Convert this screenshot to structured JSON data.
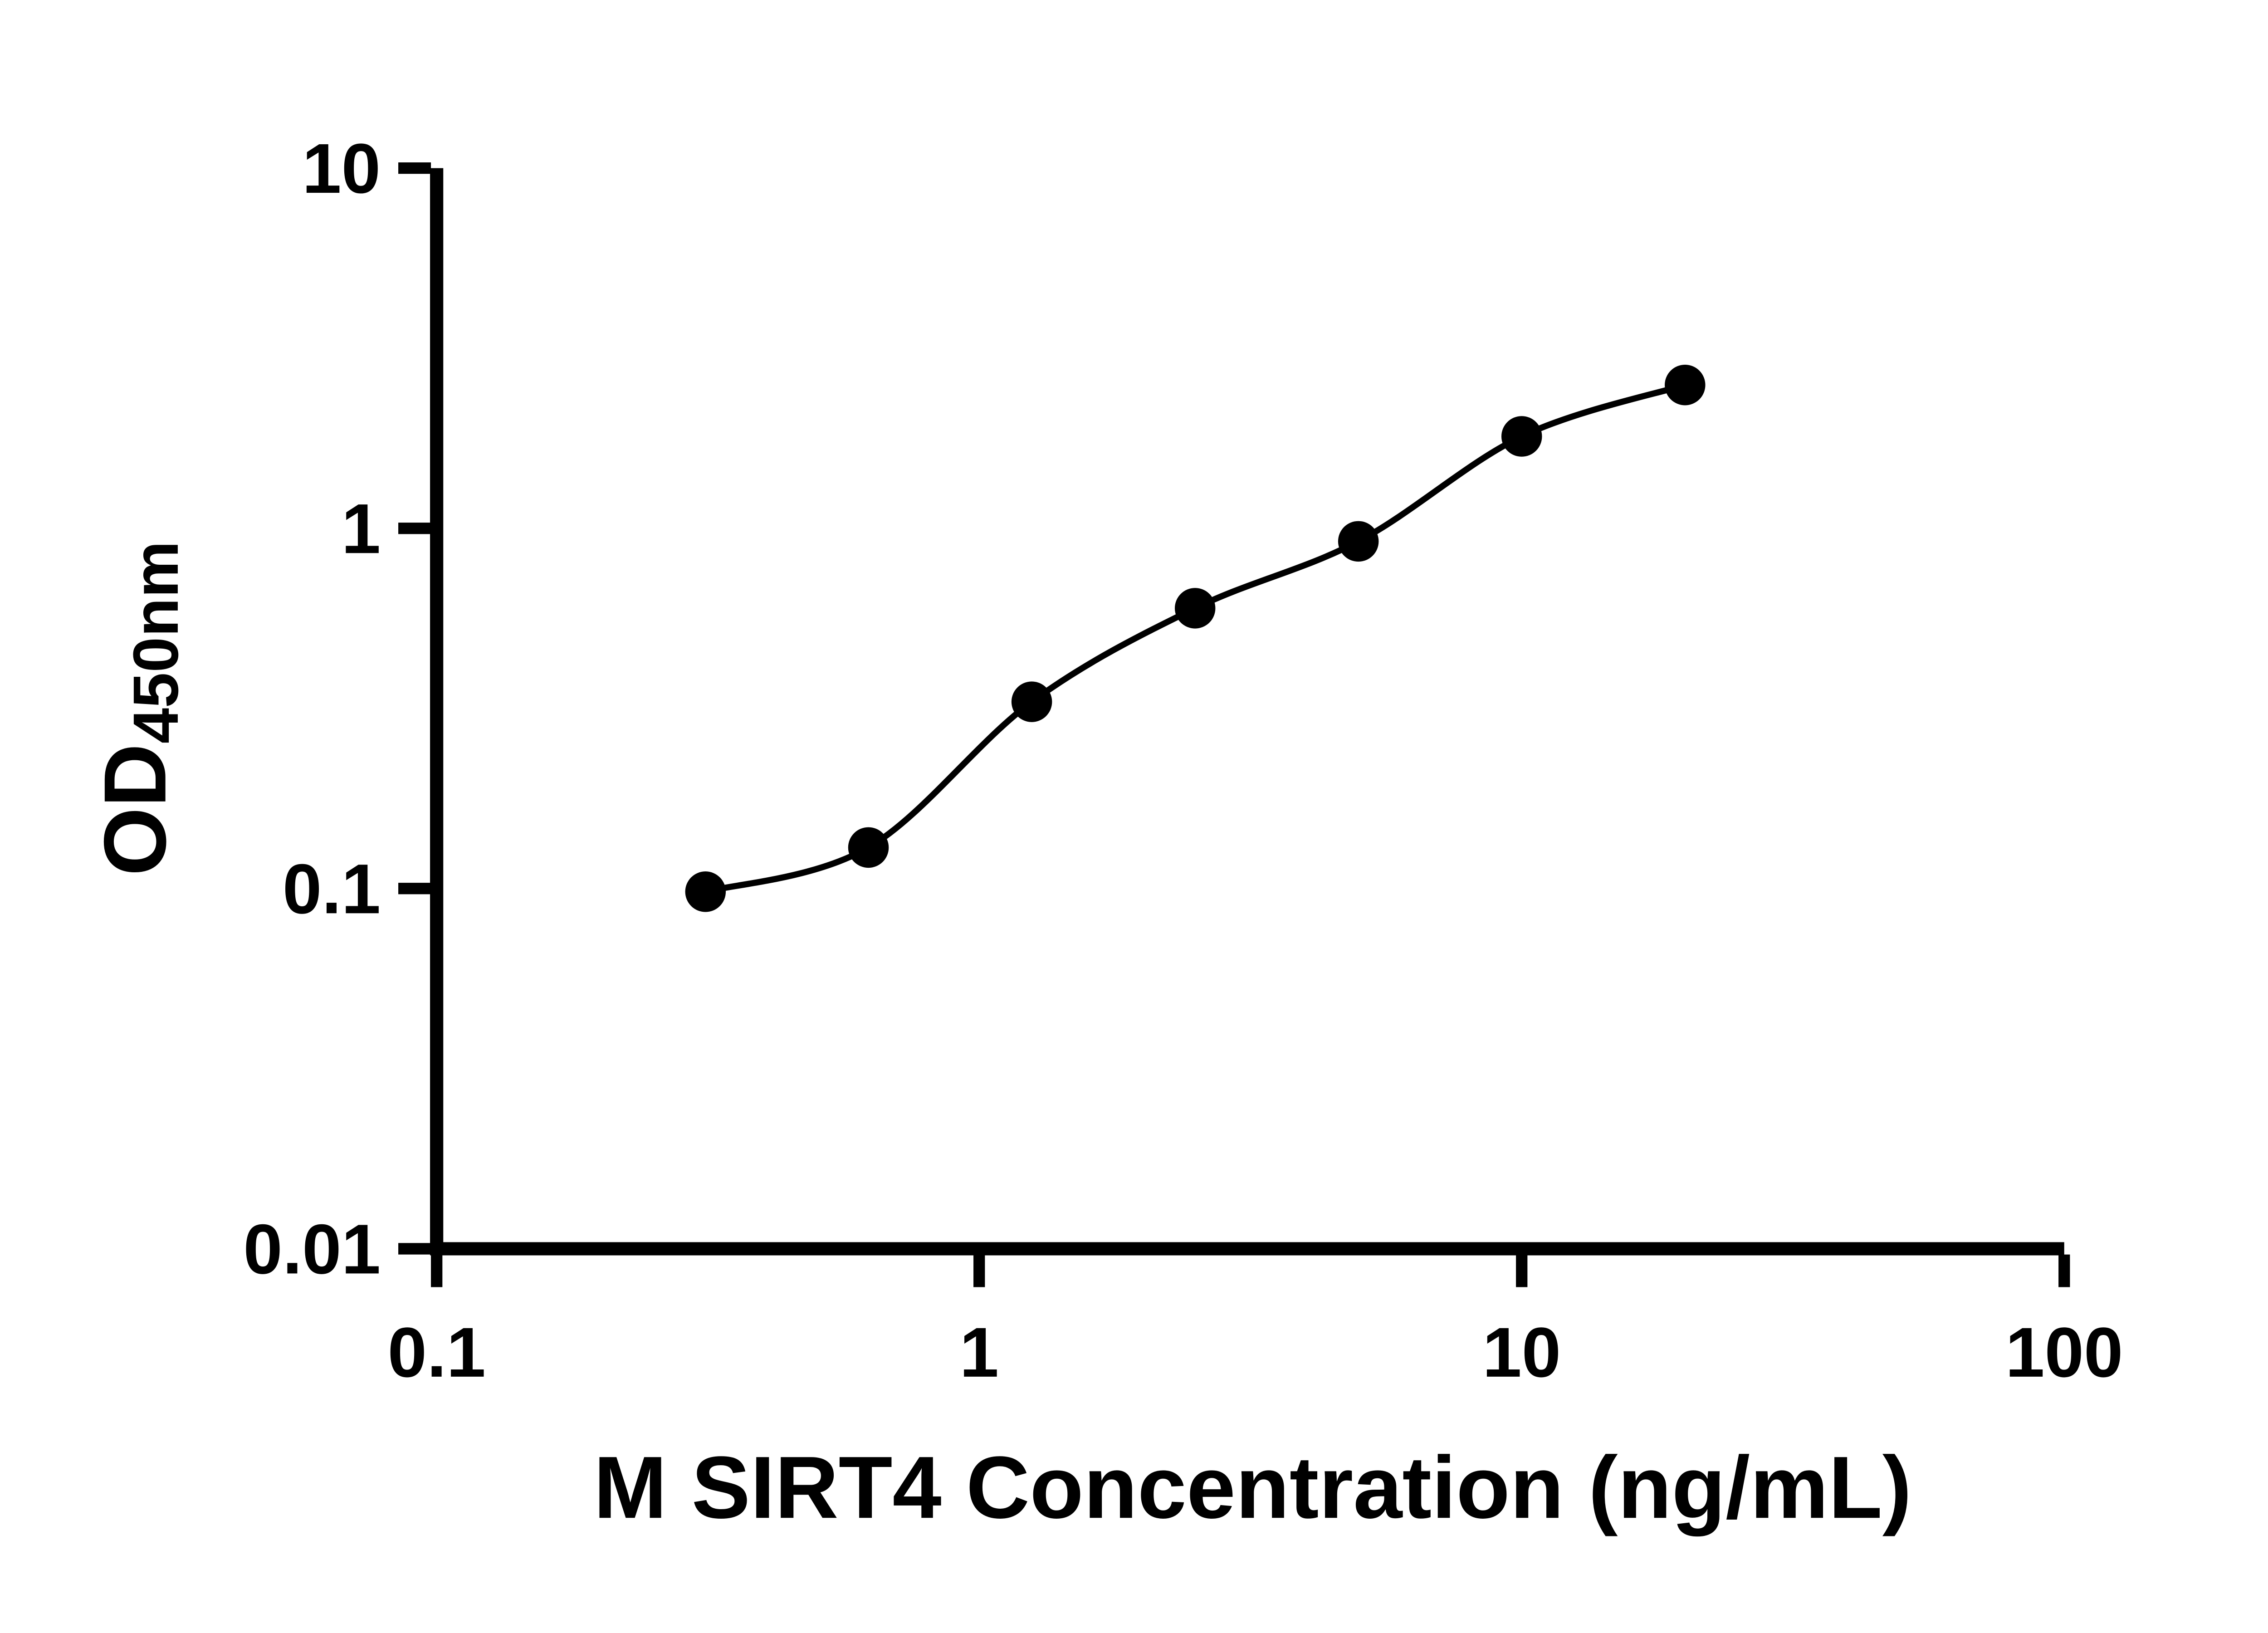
{
  "chart_data": {
    "type": "scatter",
    "x": [
      0.313,
      0.625,
      1.25,
      2.5,
      5,
      10,
      20
    ],
    "y": [
      0.098,
      0.13,
      0.33,
      0.6,
      0.92,
      1.8,
      2.5
    ],
    "xlabel": "M SIRT4 Concentration (ng/mL)",
    "ylabel_main": "OD",
    "ylabel_sub": "450nm",
    "x_scale": "log",
    "y_scale": "log",
    "xlim": [
      0.1,
      100
    ],
    "ylim": [
      0.01,
      10
    ],
    "x_ticks": [
      0.1,
      1,
      10,
      100
    ],
    "x_tick_labels": [
      "0.1",
      "1",
      "10",
      "100"
    ],
    "y_ticks": [
      0.01,
      0.1,
      1,
      10
    ],
    "y_tick_labels": [
      "0.01",
      "0.1",
      "1",
      "10"
    ],
    "grid": false,
    "legend": "none",
    "marker_color": "#000000",
    "line_color": "#000000",
    "axis_color": "#000000",
    "background": "#ffffff",
    "curve": "smooth fit through points"
  }
}
